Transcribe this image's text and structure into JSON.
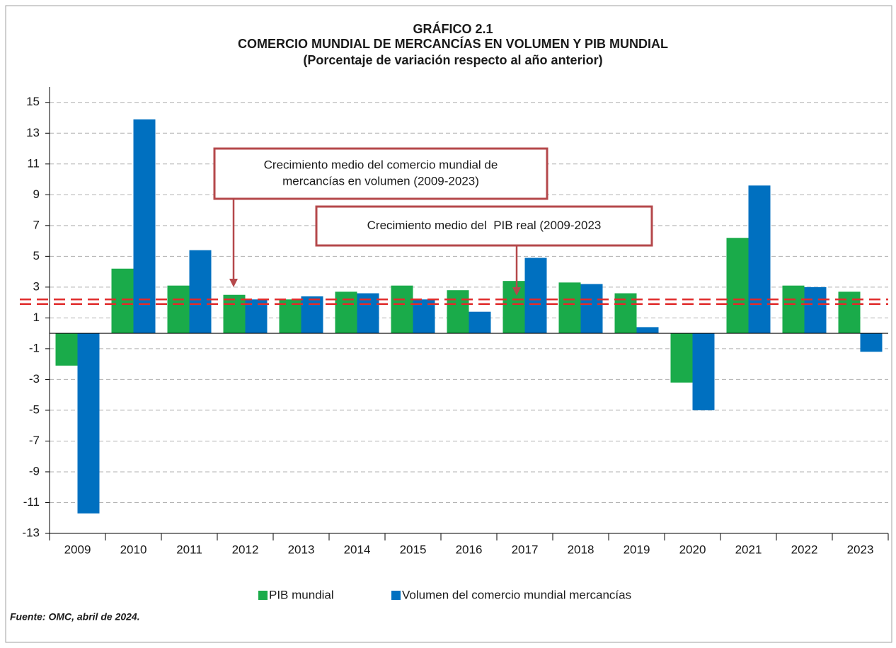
{
  "chart_data": {
    "type": "bar",
    "title": [
      "GRÁFICO 2.1",
      "COMERCIO MUNDIAL DE MERCANCÍAS EN VOLUMEN Y PIB MUNDIAL",
      "(Porcentaje de variación respecto al año anterior)"
    ],
    "categories": [
      "2009",
      "2010",
      "2011",
      "2012",
      "2013",
      "2014",
      "2015",
      "2016",
      "2017",
      "2018",
      "2019",
      "2020",
      "2021",
      "2022",
      "2023"
    ],
    "series": [
      {
        "name": "PIB mundial",
        "color": "#1aab4a",
        "values": [
          -2.1,
          4.2,
          3.1,
          2.5,
          2.2,
          2.7,
          3.1,
          2.8,
          3.4,
          3.3,
          2.6,
          -3.2,
          6.2,
          3.1,
          2.7
        ]
      },
      {
        "name": "Volumen del comercio mundial mercancías",
        "color": "#0070c0",
        "values": [
          -11.7,
          13.9,
          5.4,
          2.2,
          2.4,
          2.6,
          2.2,
          1.4,
          4.9,
          3.2,
          0.4,
          -5.0,
          9.6,
          3.0,
          -1.2
        ]
      }
    ],
    "reference_lines": [
      {
        "value": 2.2,
        "color": "#e02b2b"
      },
      {
        "value": 1.9,
        "color": "#e02b2b"
      }
    ],
    "annotations": [
      {
        "text": [
          "Crecimiento medio del comercio mundial de",
          "mercancías en volumen (2009-2023)"
        ]
      },
      {
        "text": [
          "Crecimiento medio del  PIB real (2009-2023"
        ]
      }
    ],
    "ylim": [
      -13,
      16
    ],
    "yticks": [
      15,
      13,
      11,
      9,
      7,
      5,
      3,
      1,
      -1,
      -3,
      -5,
      -7,
      -9,
      -11,
      -13
    ],
    "grid": true,
    "legend": "bottom",
    "source": "Fuente: OMC, abril de 2024."
  }
}
